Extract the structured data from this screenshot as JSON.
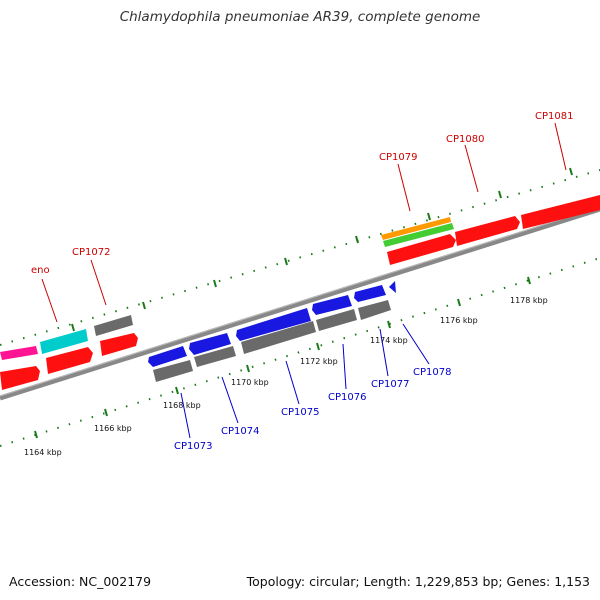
{
  "title": "Chlamydophila pneumoniae AR39, complete genome",
  "footer": {
    "accession": "Accession: NC_002179",
    "summary": "Topology: circular; Length: 1,229,853 bp; Genes: 1,153"
  },
  "colors": {
    "backbone": "#909090",
    "tick_mark": "#1a7a1a",
    "forward_gene": "#ff1010",
    "reverse_gene": "#1818e0",
    "cds_track": "#707070",
    "trna": "#00cccc",
    "special": "#ff1493",
    "orange_track": "#ff9900",
    "green_track": "#44cc33",
    "label_forward": "#cc0000",
    "label_reverse": "#0000cc"
  },
  "gene_labels": [
    {
      "id": "CP1072",
      "strand": "forward"
    },
    {
      "id": "eno",
      "strand": "forward"
    },
    {
      "id": "CP1079",
      "strand": "forward"
    },
    {
      "id": "CP1080",
      "strand": "forward"
    },
    {
      "id": "CP1081",
      "strand": "forward"
    },
    {
      "id": "CP1073",
      "strand": "reverse"
    },
    {
      "id": "CP1074",
      "strand": "reverse"
    },
    {
      "id": "CP1075",
      "strand": "reverse"
    },
    {
      "id": "CP1076",
      "strand": "reverse"
    },
    {
      "id": "CP1077",
      "strand": "reverse"
    },
    {
      "id": "CP1078",
      "strand": "reverse"
    }
  ],
  "kbp_labels": [
    "1164 kbp",
    "1166 kbp",
    "1168 kbp",
    "1170 kbp",
    "1172 kbp",
    "1174 kbp",
    "1176 kbp",
    "1178 kbp"
  ]
}
